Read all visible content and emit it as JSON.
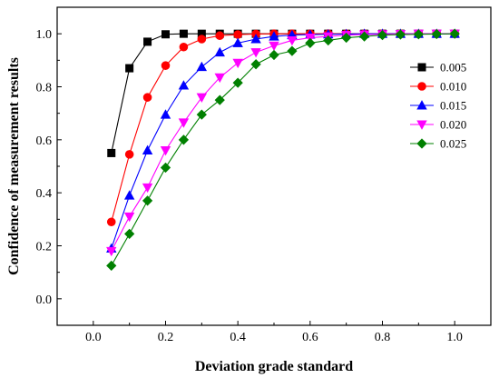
{
  "chart_data": {
    "type": "line",
    "xlabel": "Deviation grade standard",
    "ylabel": "Confidence of measurement results",
    "xlim": [
      -0.1,
      1.1
    ],
    "ylim": [
      -0.1,
      1.1
    ],
    "xticks": [
      "0.0",
      "0.2",
      "0.4",
      "0.6",
      "0.8",
      "1.0"
    ],
    "yticks": [
      "0.0",
      "0.2",
      "0.4",
      "0.6",
      "0.8",
      "1.0"
    ],
    "x": [
      0.05,
      0.1,
      0.15,
      0.2,
      0.25,
      0.3,
      0.35,
      0.4,
      0.45,
      0.5,
      0.55,
      0.6,
      0.65,
      0.7,
      0.75,
      0.8,
      0.85,
      0.9,
      0.95,
      1.0
    ],
    "grid": false,
    "legend_position": "right",
    "series": [
      {
        "name": "0.005",
        "color": "#000000",
        "marker": "square",
        "values": [
          0.55,
          0.87,
          0.97,
          0.998,
          1.0,
          1.0,
          1.0,
          1.0,
          1.0,
          1.0,
          1.0,
          1.0,
          1.0,
          1.0,
          1.0,
          1.0,
          1.0,
          1.0,
          1.0,
          1.0
        ]
      },
      {
        "name": "0.010",
        "color": "#ff0000",
        "marker": "circle",
        "values": [
          0.29,
          0.545,
          0.76,
          0.88,
          0.95,
          0.98,
          0.993,
          0.997,
          0.999,
          1.0,
          1.0,
          1.0,
          1.0,
          1.0,
          1.0,
          1.0,
          1.0,
          1.0,
          1.0,
          1.0
        ]
      },
      {
        "name": "0.015",
        "color": "#0000ff",
        "marker": "triangle-up",
        "values": [
          0.19,
          0.39,
          0.56,
          0.695,
          0.805,
          0.875,
          0.93,
          0.965,
          0.98,
          0.99,
          0.995,
          0.997,
          0.998,
          0.999,
          1.0,
          1.0,
          1.0,
          1.0,
          1.0,
          1.0
        ]
      },
      {
        "name": "0.020",
        "color": "#ff00ff",
        "marker": "triangle-down",
        "values": [
          0.18,
          0.31,
          0.42,
          0.56,
          0.665,
          0.76,
          0.835,
          0.89,
          0.93,
          0.955,
          0.975,
          0.985,
          0.99,
          0.995,
          0.997,
          0.998,
          0.999,
          1.0,
          1.0,
          1.0
        ]
      },
      {
        "name": "0.025",
        "color": "#008000",
        "marker": "diamond",
        "values": [
          0.125,
          0.245,
          0.37,
          0.495,
          0.6,
          0.695,
          0.75,
          0.815,
          0.885,
          0.92,
          0.935,
          0.965,
          0.975,
          0.985,
          0.99,
          0.995,
          0.997,
          0.998,
          0.999,
          1.0
        ]
      }
    ]
  }
}
